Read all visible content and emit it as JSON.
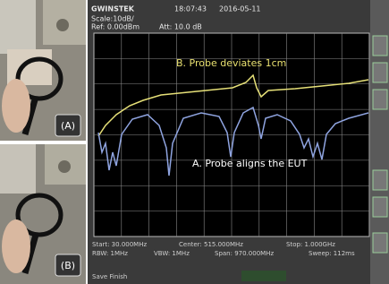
{
  "photos": [
    {
      "label": "(A)"
    },
    {
      "label": "(B)"
    }
  ],
  "header": {
    "brand": "GWINSTEK",
    "time": "18:07:43",
    "date": "2016-05-11",
    "scale": "Scale:10dB/",
    "ref": "Ref: 0.00dBm",
    "att": "Att: 10.0 dB"
  },
  "annotations": [
    "B. Probe deviates 1cm",
    "A. Probe aligns the EUT"
  ],
  "footer": {
    "start": "Start: 30.000MHz",
    "center": "Center: 515.000MHz",
    "stop": "Stop: 1.000GHz",
    "rbw": "RBW: 1MHz",
    "vbw": "VBW: 1MHz",
    "span": "Span: 970.000MHz",
    "sweep": "Sweep: 112ms",
    "status": "Save Finish"
  }
}
